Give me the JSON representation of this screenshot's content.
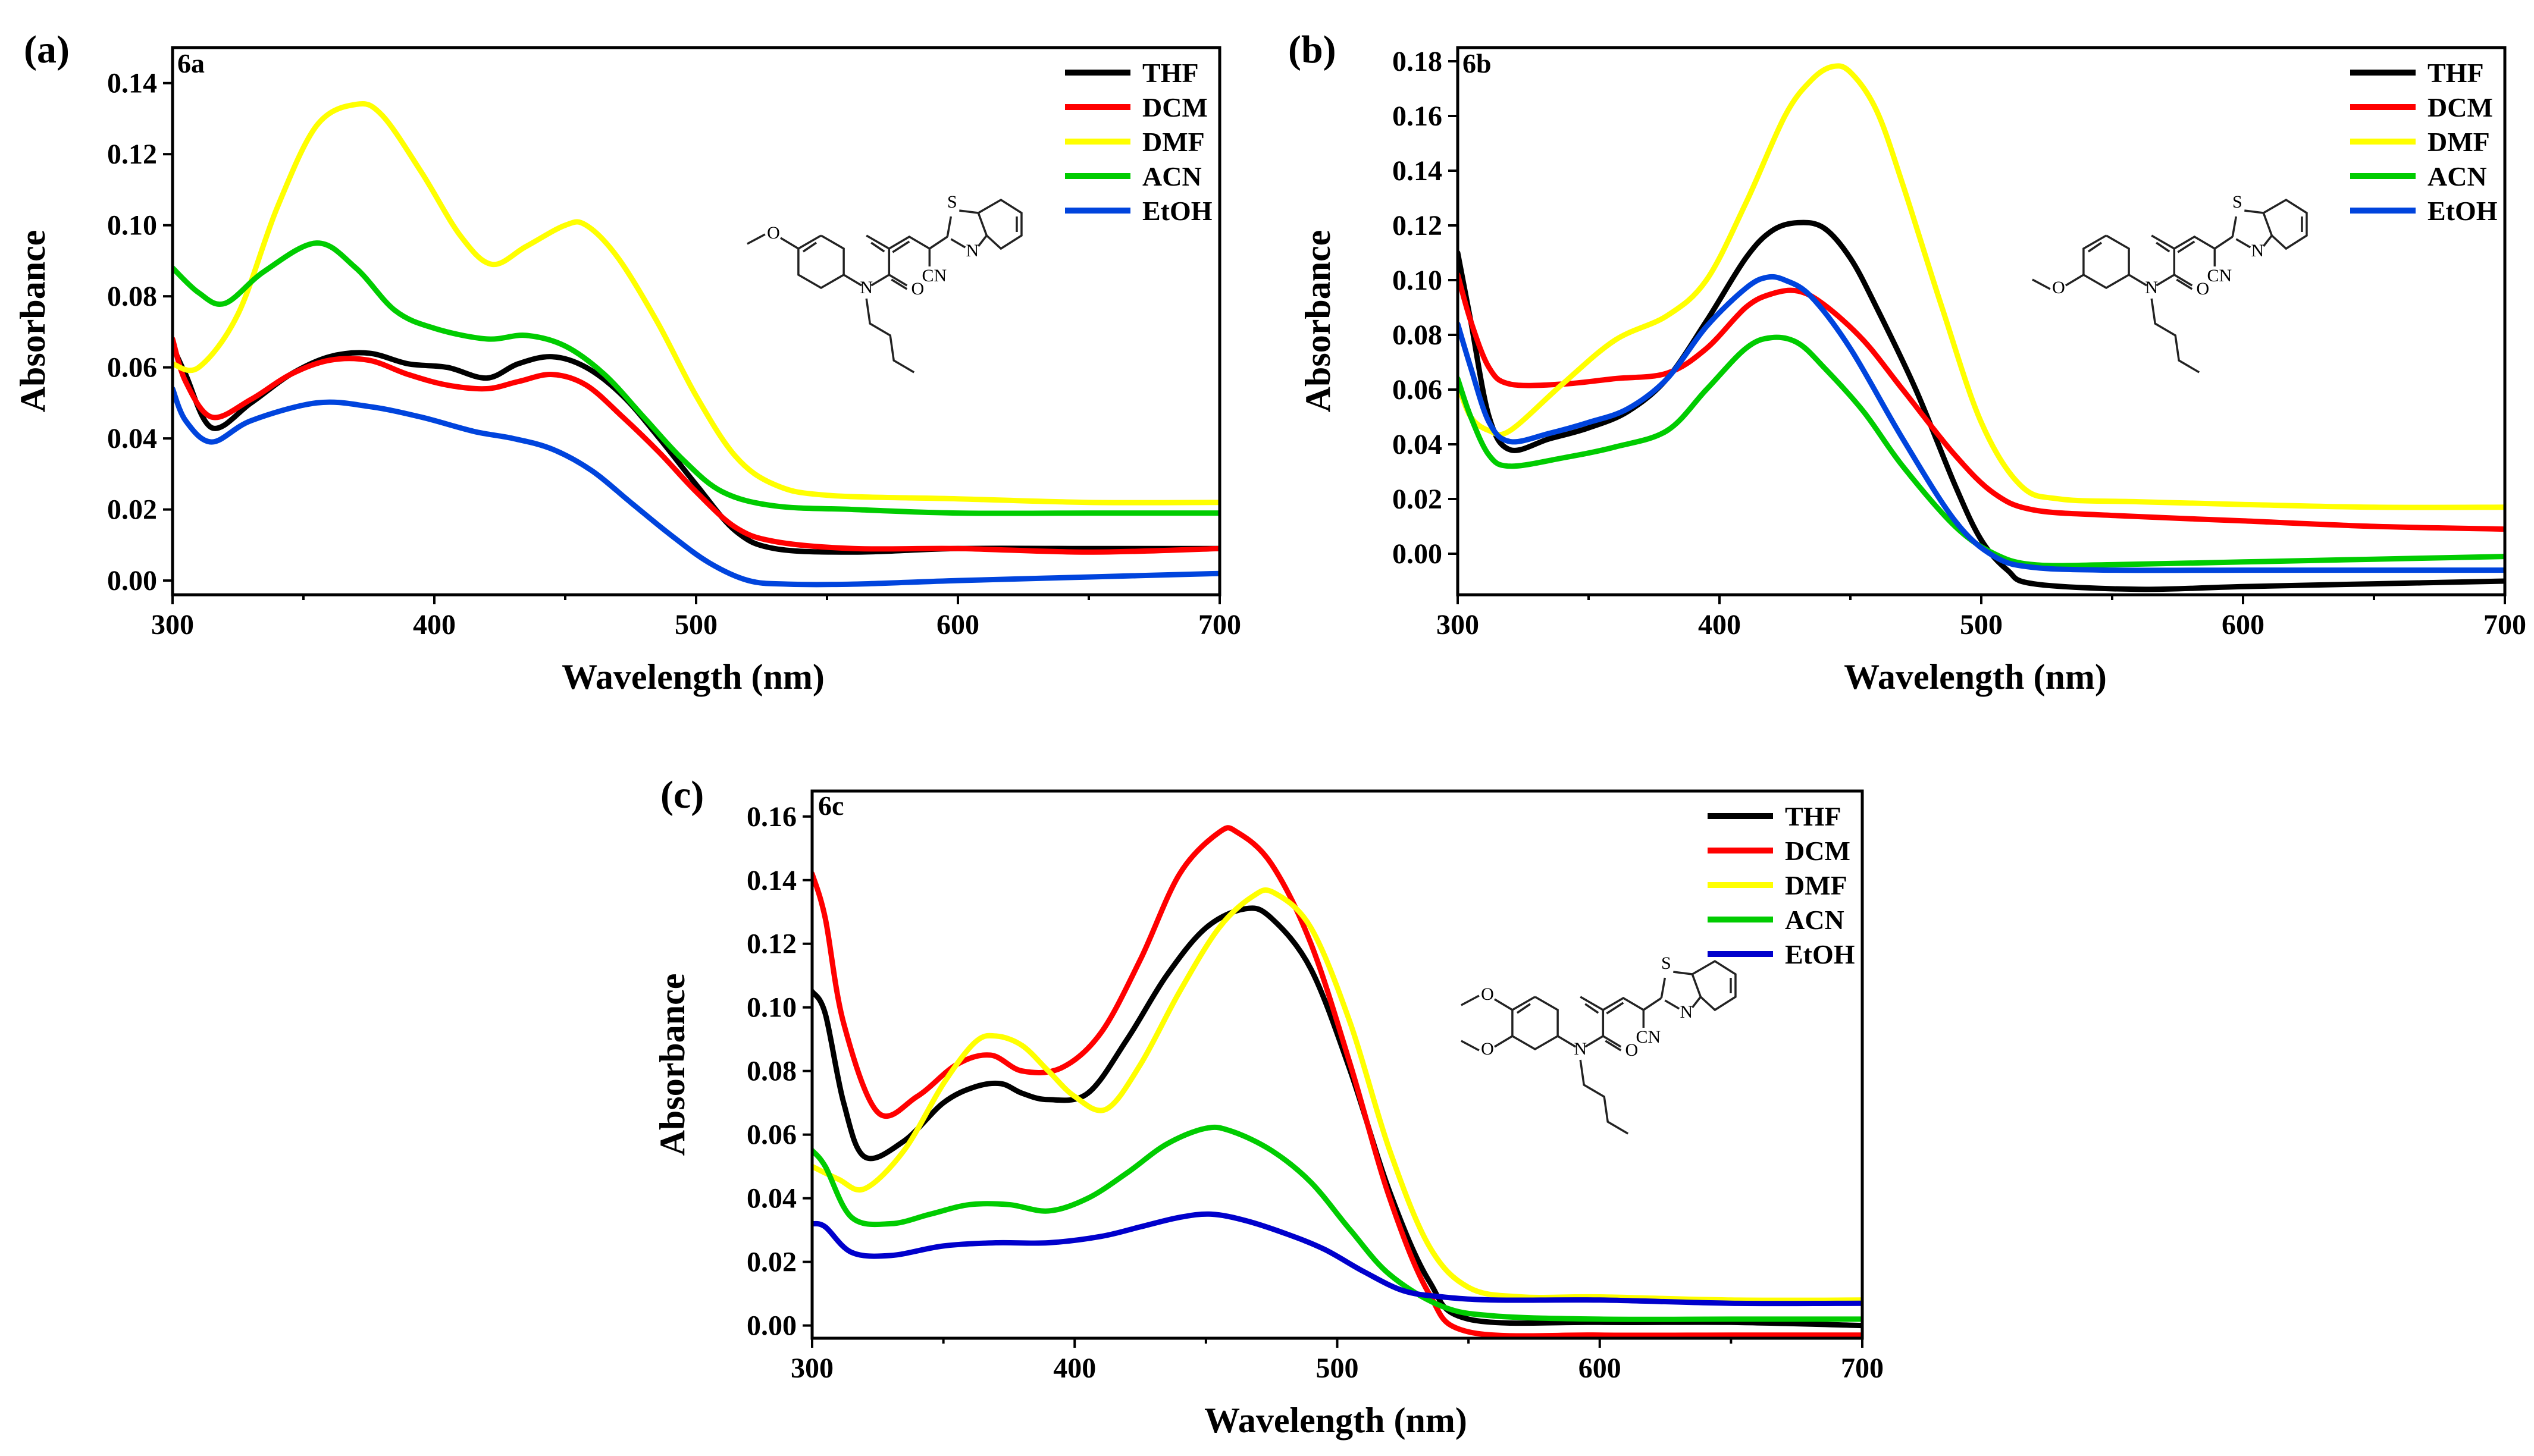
{
  "chart_data": [
    {
      "type": "line",
      "panel_label": "(a)",
      "compound": "6a",
      "xlabel": "Wavelength (nm)",
      "ylabel": "Absorbance",
      "xlim": [
        300,
        700
      ],
      "ylim": [
        -0.004,
        0.15
      ],
      "xticks": [
        300,
        400,
        500,
        600,
        700
      ],
      "xtick_labels": [
        "300",
        "400",
        "500",
        "600",
        "700"
      ],
      "yticks": [
        0,
        0.02,
        0.04,
        0.06,
        0.08,
        0.1,
        0.12,
        0.14
      ],
      "ytick_labels": [
        "0.00",
        "0.02",
        "0.04",
        "0.06",
        "0.08",
        "0.10",
        "0.12",
        "0.14"
      ],
      "legend_position": "top-right",
      "structure_substituents": [
        "OMe-6"
      ],
      "structure_labels": {
        "S": "S",
        "N_ring": "N",
        "N_q": "N",
        "O": "O",
        "CN": "CN"
      },
      "series": [
        {
          "name": "THF",
          "color": "#000000",
          "x": [
            300,
            305,
            315,
            330,
            345,
            360,
            375,
            390,
            405,
            420,
            432,
            445,
            458,
            472,
            486,
            500,
            515,
            530,
            560,
            600,
            650,
            700
          ],
          "y": [
            0.066,
            0.058,
            0.043,
            0.05,
            0.058,
            0.063,
            0.064,
            0.061,
            0.06,
            0.057,
            0.061,
            0.063,
            0.06,
            0.052,
            0.04,
            0.027,
            0.014,
            0.009,
            0.008,
            0.009,
            0.009,
            0.009
          ]
        },
        {
          "name": "DCM",
          "color": "#ff0000",
          "x": [
            300,
            305,
            315,
            330,
            345,
            360,
            375,
            390,
            405,
            420,
            432,
            445,
            458,
            472,
            486,
            500,
            515,
            530,
            560,
            600,
            650,
            700
          ],
          "y": [
            0.068,
            0.056,
            0.046,
            0.051,
            0.058,
            0.062,
            0.062,
            0.058,
            0.055,
            0.054,
            0.056,
            0.058,
            0.055,
            0.046,
            0.036,
            0.025,
            0.015,
            0.011,
            0.009,
            0.009,
            0.008,
            0.009
          ]
        },
        {
          "name": "DMF",
          "color": "#ffff00",
          "x": [
            300,
            310,
            325,
            340,
            355,
            370,
            380,
            395,
            410,
            422,
            435,
            450,
            458,
            470,
            485,
            500,
            515,
            530,
            550,
            600,
            650,
            700
          ],
          "y": [
            0.061,
            0.06,
            0.075,
            0.105,
            0.128,
            0.134,
            0.131,
            0.115,
            0.097,
            0.089,
            0.094,
            0.1,
            0.1,
            0.091,
            0.073,
            0.052,
            0.035,
            0.027,
            0.024,
            0.023,
            0.022,
            0.022
          ]
        },
        {
          "name": "ACN",
          "color": "#00cc00",
          "x": [
            300,
            310,
            320,
            335,
            355,
            370,
            385,
            400,
            420,
            435,
            450,
            465,
            480,
            495,
            510,
            530,
            560,
            600,
            650,
            700
          ],
          "y": [
            0.088,
            0.081,
            0.078,
            0.087,
            0.095,
            0.088,
            0.076,
            0.071,
            0.068,
            0.069,
            0.066,
            0.058,
            0.046,
            0.034,
            0.025,
            0.021,
            0.02,
            0.019,
            0.019,
            0.019
          ]
        },
        {
          "name": "EtOH",
          "color": "#0044dd",
          "x": [
            300,
            305,
            315,
            330,
            355,
            375,
            395,
            415,
            430,
            445,
            460,
            475,
            490,
            505,
            520,
            535,
            560,
            600,
            650,
            700
          ],
          "y": [
            0.054,
            0.045,
            0.039,
            0.045,
            0.05,
            0.049,
            0.046,
            0.042,
            0.04,
            0.037,
            0.031,
            0.022,
            0.013,
            0.005,
            0.0,
            -0.001,
            -0.001,
            0.0,
            0.001,
            0.002
          ]
        }
      ]
    },
    {
      "type": "line",
      "panel_label": "(b)",
      "compound": "6b",
      "xlabel": "Wavelength (nm)",
      "ylabel": "Absorbance",
      "xlim": [
        300,
        700
      ],
      "ylim": [
        -0.015,
        0.185
      ],
      "xticks": [
        300,
        400,
        500,
        600,
        700
      ],
      "xtick_labels": [
        "300",
        "400",
        "500",
        "600",
        "700"
      ],
      "yticks": [
        0,
        0.02,
        0.04,
        0.06,
        0.08,
        0.1,
        0.12,
        0.14,
        0.16,
        0.18
      ],
      "ytick_labels": [
        "0.00",
        "0.02",
        "0.04",
        "0.06",
        "0.08",
        "0.10",
        "0.12",
        "0.14",
        "0.16",
        "0.18"
      ],
      "legend_position": "top-right",
      "structure_substituents": [
        "OMe-7"
      ],
      "structure_labels": {
        "S": "S",
        "N_ring": "N",
        "N_q": "N",
        "O": "O",
        "CN": "CN"
      },
      "series": [
        {
          "name": "THF",
          "color": "#000000",
          "x": [
            300,
            305,
            312,
            320,
            335,
            350,
            365,
            380,
            395,
            410,
            420,
            430,
            440,
            450,
            460,
            475,
            490,
            500,
            510,
            520,
            560,
            600,
            650,
            700
          ],
          "y": [
            0.11,
            0.085,
            0.05,
            0.038,
            0.042,
            0.046,
            0.052,
            0.064,
            0.085,
            0.108,
            0.118,
            0.121,
            0.119,
            0.108,
            0.09,
            0.06,
            0.025,
            0.005,
            -0.006,
            -0.011,
            -0.013,
            -0.012,
            -0.011,
            -0.01
          ]
        },
        {
          "name": "DCM",
          "color": "#ff0000",
          "x": [
            300,
            305,
            312,
            320,
            340,
            360,
            380,
            395,
            410,
            420,
            430,
            440,
            455,
            470,
            490,
            505,
            520,
            550,
            600,
            650,
            700
          ],
          "y": [
            0.102,
            0.085,
            0.068,
            0.062,
            0.062,
            0.064,
            0.066,
            0.075,
            0.09,
            0.095,
            0.096,
            0.091,
            0.078,
            0.06,
            0.036,
            0.022,
            0.016,
            0.014,
            0.012,
            0.01,
            0.009
          ]
        },
        {
          "name": "DMF",
          "color": "#ffff00",
          "x": [
            300,
            305,
            312,
            320,
            340,
            360,
            380,
            395,
            410,
            425,
            435,
            443,
            450,
            460,
            470,
            485,
            500,
            515,
            530,
            560,
            600,
            650,
            700
          ],
          "y": [
            0.062,
            0.05,
            0.045,
            0.045,
            0.062,
            0.078,
            0.087,
            0.1,
            0.128,
            0.16,
            0.173,
            0.178,
            0.176,
            0.162,
            0.135,
            0.09,
            0.048,
            0.025,
            0.02,
            0.019,
            0.018,
            0.017,
            0.017
          ]
        },
        {
          "name": "ACN",
          "color": "#00cc00",
          "x": [
            300,
            305,
            312,
            320,
            340,
            360,
            380,
            395,
            410,
            420,
            430,
            440,
            455,
            470,
            490,
            505,
            520,
            550,
            600,
            650,
            700
          ],
          "y": [
            0.064,
            0.05,
            0.036,
            0.032,
            0.035,
            0.039,
            0.045,
            0.06,
            0.075,
            0.079,
            0.077,
            0.068,
            0.052,
            0.032,
            0.01,
            0.0,
            -0.004,
            -0.004,
            -0.003,
            -0.002,
            -0.001
          ]
        },
        {
          "name": "EtOH",
          "color": "#0044dd",
          "x": [
            300,
            305,
            312,
            320,
            335,
            350,
            365,
            380,
            395,
            410,
            418,
            425,
            435,
            450,
            470,
            490,
            505,
            520,
            550,
            600,
            650,
            700
          ],
          "y": [
            0.084,
            0.068,
            0.048,
            0.041,
            0.044,
            0.048,
            0.053,
            0.064,
            0.083,
            0.097,
            0.101,
            0.1,
            0.094,
            0.075,
            0.042,
            0.012,
            -0.001,
            -0.005,
            -0.006,
            -0.006,
            -0.006,
            -0.006
          ]
        }
      ]
    },
    {
      "type": "line",
      "panel_label": "(c)",
      "compound": "6c",
      "xlabel": "Wavelength (nm)",
      "ylabel": "Absorbance",
      "xlim": [
        300,
        700
      ],
      "ylim": [
        -0.004,
        0.168
      ],
      "xticks": [
        300,
        400,
        500,
        600,
        700
      ],
      "xtick_labels": [
        "300",
        "400",
        "500",
        "600",
        "700"
      ],
      "yticks": [
        0,
        0.02,
        0.04,
        0.06,
        0.08,
        0.1,
        0.12,
        0.14,
        0.16
      ],
      "ytick_labels": [
        "0.00",
        "0.02",
        "0.04",
        "0.06",
        "0.08",
        "0.10",
        "0.12",
        "0.14",
        "0.16"
      ],
      "legend_position": "top-right",
      "structure_substituents": [
        "OMe-6",
        "OMe-7"
      ],
      "structure_labels": {
        "S": "S",
        "N_ring": "N",
        "N_q": "N",
        "O": "O",
        "CN": "CN"
      },
      "series": [
        {
          "name": "THF",
          "color": "#000000",
          "x": [
            300,
            305,
            312,
            320,
            335,
            350,
            362,
            372,
            380,
            390,
            405,
            420,
            435,
            450,
            465,
            475,
            490,
            505,
            520,
            535,
            550,
            600,
            650,
            700
          ],
          "y": [
            0.105,
            0.098,
            0.07,
            0.053,
            0.058,
            0.07,
            0.075,
            0.076,
            0.073,
            0.071,
            0.073,
            0.09,
            0.11,
            0.125,
            0.131,
            0.128,
            0.112,
            0.08,
            0.042,
            0.014,
            0.002,
            0.001,
            0.001,
            0.0
          ]
        },
        {
          "name": "DCM",
          "color": "#ff0000",
          "x": [
            300,
            305,
            312,
            325,
            340,
            355,
            368,
            380,
            395,
            410,
            425,
            440,
            455,
            462,
            475,
            490,
            505,
            520,
            535,
            550,
            600,
            650,
            700
          ],
          "y": [
            0.142,
            0.128,
            0.095,
            0.067,
            0.072,
            0.082,
            0.085,
            0.08,
            0.081,
            0.092,
            0.115,
            0.142,
            0.155,
            0.155,
            0.145,
            0.12,
            0.082,
            0.04,
            0.01,
            -0.002,
            -0.003,
            -0.003,
            -0.003
          ]
        },
        {
          "name": "DMF",
          "color": "#ffff00",
          "x": [
            300,
            310,
            320,
            335,
            350,
            362,
            370,
            380,
            390,
            400,
            412,
            425,
            440,
            455,
            468,
            476,
            490,
            505,
            520,
            535,
            550,
            570,
            600,
            650,
            700
          ],
          "y": [
            0.05,
            0.046,
            0.043,
            0.055,
            0.076,
            0.089,
            0.091,
            0.088,
            0.08,
            0.072,
            0.068,
            0.082,
            0.105,
            0.125,
            0.135,
            0.136,
            0.125,
            0.095,
            0.055,
            0.025,
            0.012,
            0.009,
            0.009,
            0.008,
            0.008
          ]
        },
        {
          "name": "ACN",
          "color": "#00cc00",
          "x": [
            300,
            305,
            315,
            330,
            345,
            360,
            375,
            390,
            405,
            420,
            435,
            450,
            460,
            475,
            490,
            505,
            520,
            540,
            560,
            600,
            650,
            700
          ],
          "y": [
            0.055,
            0.05,
            0.034,
            0.032,
            0.035,
            0.038,
            0.038,
            0.036,
            0.04,
            0.048,
            0.057,
            0.062,
            0.061,
            0.055,
            0.045,
            0.03,
            0.016,
            0.006,
            0.003,
            0.002,
            0.002,
            0.002
          ]
        },
        {
          "name": "EtOH",
          "color": "#0000cc",
          "x": [
            300,
            305,
            315,
            330,
            350,
            370,
            390,
            410,
            425,
            440,
            452,
            465,
            480,
            495,
            510,
            525,
            540,
            560,
            600,
            650,
            700
          ],
          "y": [
            0.032,
            0.031,
            0.023,
            0.022,
            0.025,
            0.026,
            0.026,
            0.028,
            0.031,
            0.034,
            0.035,
            0.033,
            0.029,
            0.024,
            0.017,
            0.011,
            0.009,
            0.008,
            0.008,
            0.007,
            0.007
          ]
        }
      ]
    }
  ]
}
